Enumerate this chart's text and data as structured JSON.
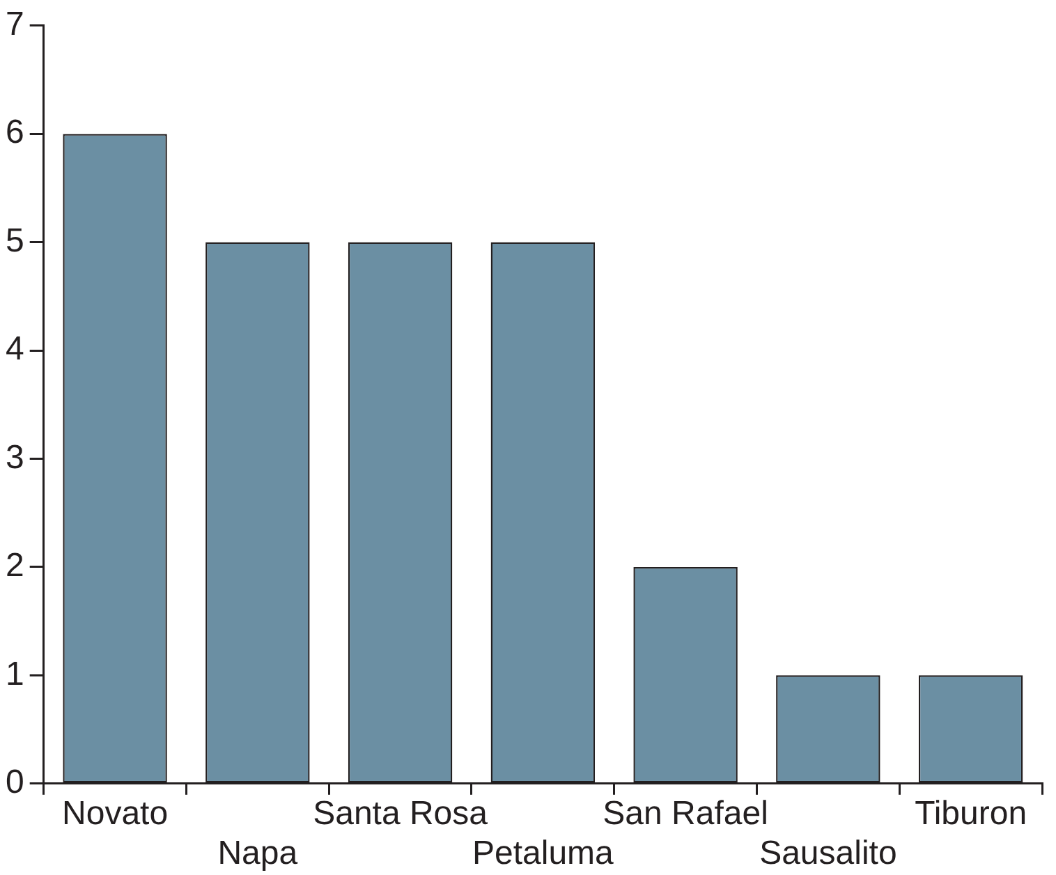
{
  "chart_data": {
    "type": "bar",
    "categories": [
      "Novato",
      "Napa",
      "Santa Rosa",
      "Petaluma",
      "San Rafael",
      "Sausalito",
      "Tiburon"
    ],
    "values": [
      6,
      5,
      5,
      5,
      2,
      1,
      1
    ],
    "color": "#6b8fa3",
    "ylim": [
      0,
      7
    ],
    "yticks": [
      0,
      1,
      2,
      3,
      4,
      5,
      6,
      7
    ],
    "grid": false
  }
}
